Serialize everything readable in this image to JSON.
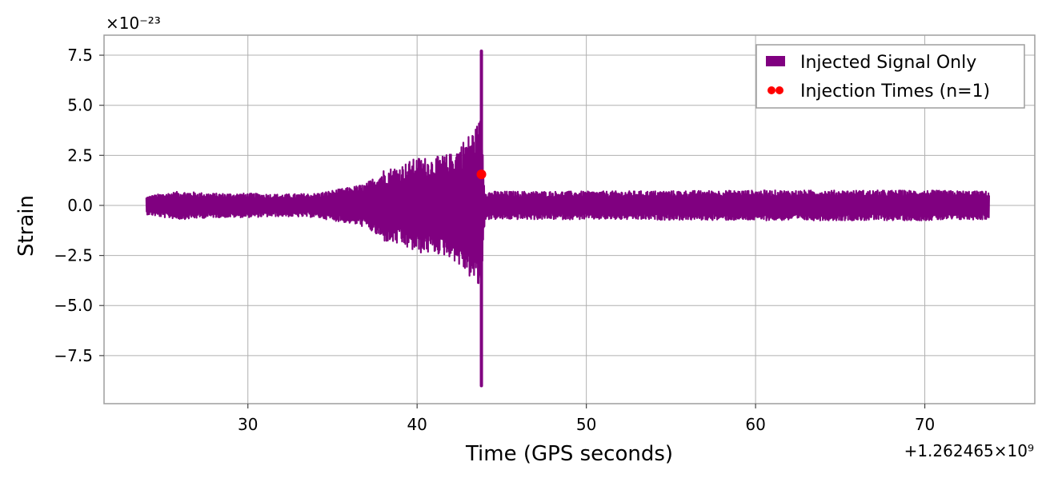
{
  "chart_data": {
    "type": "line",
    "xlabel": "Time (GPS seconds)",
    "ylabel": "Strain",
    "x_offset_text": "+1.262465×10⁹",
    "y_scale_text": "×10⁻²³",
    "xlim": [
      21.5,
      76.5
    ],
    "ylim": [
      -9.9,
      8.5
    ],
    "x_ticks": [
      30,
      40,
      50,
      60,
      70
    ],
    "x_tick_labels": [
      "30",
      "40",
      "50",
      "60",
      "70"
    ],
    "y_ticks": [
      -7.5,
      -5.0,
      -2.5,
      0.0,
      2.5,
      5.0,
      7.5
    ],
    "y_tick_labels": [
      "−7.5",
      "−5.0",
      "−2.5",
      "0.0",
      "2.5",
      "5.0",
      "7.5"
    ],
    "grid": true,
    "legend_position": "top-right",
    "colors": {
      "signal": "#800080",
      "injection": "#ff0000"
    },
    "series": [
      {
        "name": "Injected Signal Only",
        "kind": "strain-envelope",
        "x_range": [
          24.0,
          73.8
        ],
        "peak_time": 43.8,
        "peak_max": 7.7,
        "peak_min": -9.0,
        "envelope": [
          {
            "x": 24.0,
            "y": 0.45
          },
          {
            "x": 25.0,
            "y": 0.6
          },
          {
            "x": 26.0,
            "y": 0.7
          },
          {
            "x": 28.0,
            "y": 0.6
          },
          {
            "x": 30.0,
            "y": 0.6
          },
          {
            "x": 32.0,
            "y": 0.55
          },
          {
            "x": 34.0,
            "y": 0.6
          },
          {
            "x": 35.0,
            "y": 0.75
          },
          {
            "x": 36.0,
            "y": 0.9
          },
          {
            "x": 37.0,
            "y": 1.1
          },
          {
            "x": 38.0,
            "y": 1.8
          },
          {
            "x": 39.0,
            "y": 2.0
          },
          {
            "x": 40.0,
            "y": 2.4
          },
          {
            "x": 41.0,
            "y": 2.4
          },
          {
            "x": 42.0,
            "y": 2.6
          },
          {
            "x": 43.0,
            "y": 3.5
          },
          {
            "x": 43.5,
            "y": 4.0
          },
          {
            "x": 43.8,
            "y": 4.5
          },
          {
            "x": 44.0,
            "y": 0.7
          },
          {
            "x": 50.0,
            "y": 0.7
          },
          {
            "x": 60.0,
            "y": 0.75
          },
          {
            "x": 70.0,
            "y": 0.75
          },
          {
            "x": 73.8,
            "y": 0.7
          }
        ]
      },
      {
        "name": "Injection Times (n=1)",
        "kind": "markers",
        "x": [
          43.8
        ],
        "y": [
          1.55
        ]
      }
    ]
  }
}
